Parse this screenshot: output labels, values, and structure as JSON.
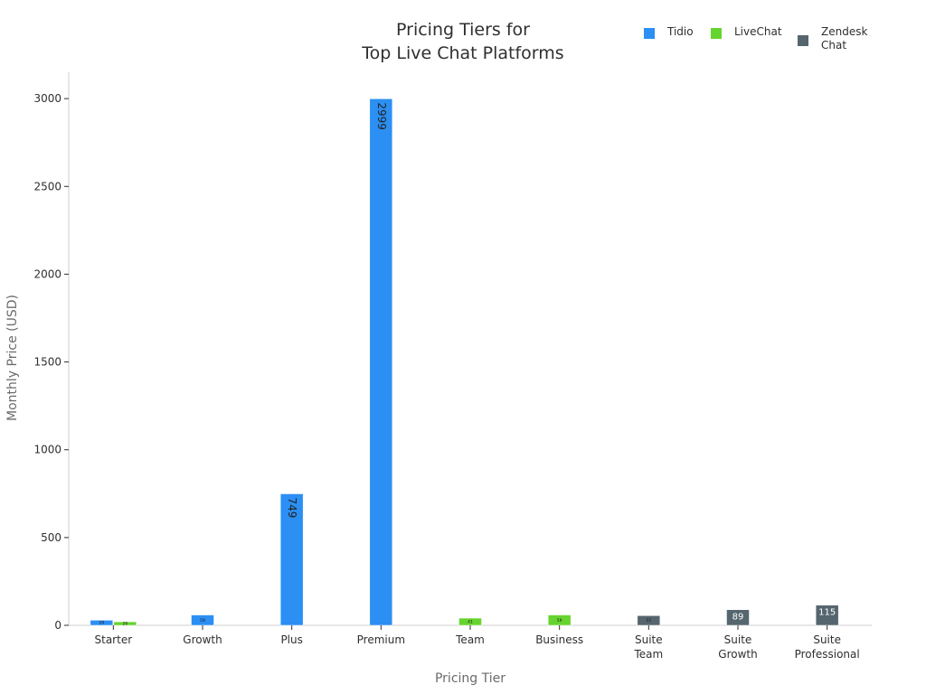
{
  "chart_data": {
    "type": "bar",
    "title_lines": [
      "Pricing Tiers for",
      "Top Live Chat Platforms"
    ],
    "xlabel": "Pricing Tier",
    "ylabel": "Monthly Price (USD)",
    "ylim": [
      0,
      3150
    ],
    "yticks": [
      0,
      500,
      1000,
      1500,
      2000,
      2500,
      3000
    ],
    "grid": false,
    "legend_position": "top-right",
    "categories": [
      [
        "Starter"
      ],
      [
        "Growth"
      ],
      [
        "Plus"
      ],
      [
        "Premium"
      ],
      [
        "Team"
      ],
      [
        "Business"
      ],
      [
        "Suite",
        "Team"
      ],
      [
        "Suite",
        "Growth"
      ],
      [
        "Suite",
        "Professional"
      ]
    ],
    "series": [
      {
        "name": "Tidio",
        "color": "#2b8ff3",
        "values": [
          29,
          59,
          749,
          2999,
          null,
          null,
          null,
          null,
          null
        ],
        "labels": [
          "29",
          "59",
          "749",
          "2999",
          "",
          "",
          "",
          "",
          ""
        ]
      },
      {
        "name": "LiveChat",
        "color": "#66d42f",
        "values": [
          20,
          null,
          null,
          null,
          41,
          59,
          null,
          null,
          null
        ],
        "labels": [
          "20",
          "",
          "",
          "",
          "41",
          "59",
          "",
          "",
          ""
        ]
      },
      {
        "name": "Zendesk Chat",
        "color": "#56666f",
        "values": [
          null,
          null,
          null,
          null,
          null,
          null,
          55,
          89,
          115
        ],
        "labels": [
          "",
          "",
          "",
          "",
          "",
          "",
          "55",
          "89",
          "115"
        ]
      }
    ]
  },
  "legend": {
    "items": [
      {
        "label": "Tidio",
        "color": "#2b8ff3"
      },
      {
        "label": "LiveChat",
        "color": "#66d42f"
      },
      {
        "label": "Zendesk Chat",
        "color": "#56666f"
      }
    ]
  }
}
